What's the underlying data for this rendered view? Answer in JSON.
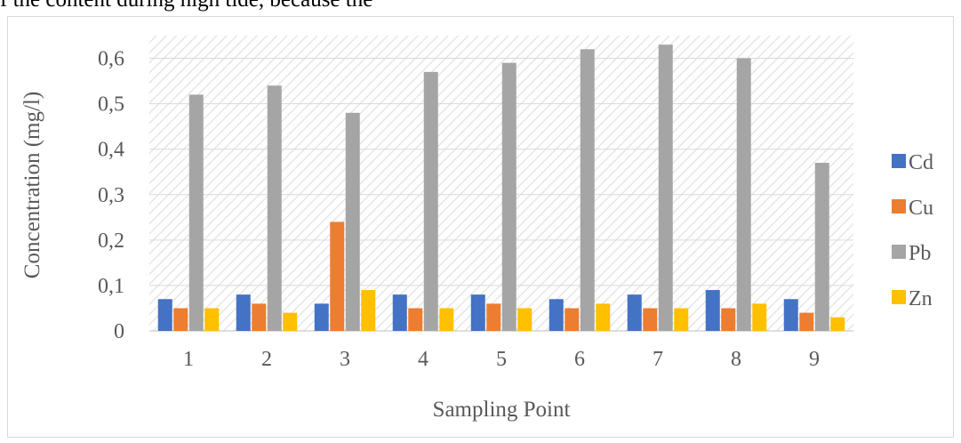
{
  "page": {
    "top_text": "f the content during high tide, because the"
  },
  "chart_data": {
    "type": "bar",
    "categories": [
      "1",
      "2",
      "3",
      "4",
      "5",
      "6",
      "7",
      "8",
      "9"
    ],
    "series": [
      {
        "name": "Cd",
        "color": "#4472c4",
        "values": [
          0.07,
          0.08,
          0.06,
          0.08,
          0.08,
          0.07,
          0.08,
          0.09,
          0.07
        ]
      },
      {
        "name": "Cu",
        "color": "#ed7d31",
        "values": [
          0.05,
          0.06,
          0.24,
          0.05,
          0.06,
          0.05,
          0.05,
          0.05,
          0.04
        ]
      },
      {
        "name": "Pb",
        "color": "#a5a5a5",
        "values": [
          0.52,
          0.54,
          0.48,
          0.57,
          0.59,
          0.62,
          0.63,
          0.6,
          0.37
        ]
      },
      {
        "name": "Zn",
        "color": "#ffc000",
        "values": [
          0.05,
          0.04,
          0.09,
          0.05,
          0.05,
          0.06,
          0.05,
          0.06,
          0.03
        ]
      }
    ],
    "title": "",
    "xlabel": "Sampling Point",
    "ylabel": "Concentration (mg/l)",
    "ylim": [
      0,
      0.65
    ],
    "yticks": [
      0,
      0.1,
      0.2,
      0.3,
      0.4,
      0.5,
      0.6
    ],
    "ytick_labels": [
      "0",
      "0,1",
      "0,2",
      "0,3",
      "0,4",
      "0,5",
      "0,6"
    ],
    "grid": true,
    "plot_background": "diagonal-hatch",
    "legend_position": "right"
  }
}
